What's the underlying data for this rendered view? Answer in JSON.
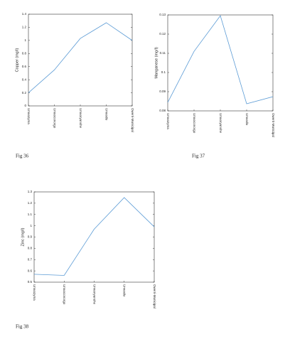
{
  "chart_data": [
    {
      "type": "line",
      "caption": "Fig 36",
      "ylabel": "Copper (mg/l)",
      "categories": [
        "Umuozyma",
        "Umuoconorgo",
        "Umuoryanshe",
        "Umuodu",
        "Owerri-Municipal"
      ],
      "series": [
        {
          "name": "Copper",
          "color": "#5b9bd5",
          "values": [
            0.2,
            0.55,
            1.03,
            1.27,
            1.0
          ]
        }
      ],
      "ylim": [
        0,
        1.4
      ],
      "yticks": [
        0,
        0.2,
        0.4,
        0.6,
        0.8,
        1,
        1.2,
        1.4
      ]
    },
    {
      "type": "line",
      "caption": "Fig 37",
      "ylabel": "Manganese (mg/l)",
      "categories": [
        "Umuozyma",
        "Umuoconorgo",
        "Umuoryanshe",
        "Umuodu",
        "Owerri-Municipal"
      ],
      "series": [
        {
          "name": "Manganese",
          "color": "#5b9bd5",
          "values": [
            0.0844,
            0.111,
            0.1296,
            0.0837,
            0.0874
          ]
        }
      ],
      "ylim": [
        0.08,
        0.13
      ],
      "yticks": [
        0.08,
        0.09,
        0.1,
        0.11,
        0.12,
        0.13
      ]
    },
    {
      "type": "line",
      "caption": "Fig 38",
      "ylabel": "Zinc (mg/l)",
      "categories": [
        "Umuozyma",
        "Umuoconorgo",
        "Umuoryanshe",
        "Umuodu",
        "Owerri-Municipal"
      ],
      "series": [
        {
          "name": "Zinc",
          "color": "#5b9bd5",
          "values": [
            0.57,
            0.56,
            0.97,
            1.25,
            0.99
          ]
        }
      ],
      "ylim": [
        0.5,
        1.3
      ],
      "yticks": [
        0.5,
        0.6,
        0.7,
        0.8,
        0.9,
        1,
        1.1,
        1.2,
        1.3
      ]
    }
  ]
}
